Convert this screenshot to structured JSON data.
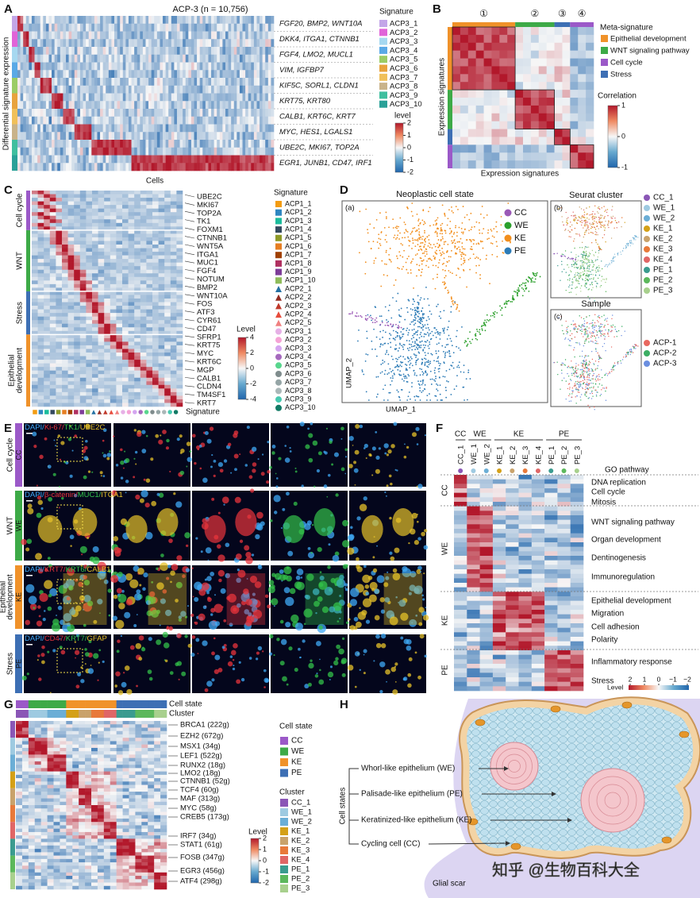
{
  "A": {
    "label": "A",
    "title": "ACP-3 (n = 10,756)",
    "y_label": "Differential signature expression",
    "x_label": "Cells",
    "genes": [
      "FGF20, BMP2, WNT10A",
      "DKK4, ITGA1, CTNNB1",
      "FGF4, LMO2, MUCL1",
      "VIM, IGFBP7",
      "KIF5C, SORL1, CLDN1",
      "KRT75, KRT80",
      "CALB1, KRT6C, KRT7",
      "MYC, HES1, LGALS1",
      "UBE2C, MKI67, TOP2A",
      "EGR1, JUNB1, CD47, IRF1"
    ],
    "legend_title": "Signature",
    "legend": [
      {
        "name": "ACP3_1",
        "color": "#c3a6e8"
      },
      {
        "name": "ACP3_2",
        "color": "#e064d8"
      },
      {
        "name": "ACP3_3",
        "color": "#a6d8f0"
      },
      {
        "name": "ACP3_4",
        "color": "#5aa9e6"
      },
      {
        "name": "ACP3_5",
        "color": "#9ccc65"
      },
      {
        "name": "ACP3_6",
        "color": "#e8a33d"
      },
      {
        "name": "ACP3_7",
        "color": "#f0c05a"
      },
      {
        "name": "ACP3_8",
        "color": "#c9b38a"
      },
      {
        "name": "ACP3_9",
        "color": "#3fbf9f"
      },
      {
        "name": "ACP3_10",
        "color": "#2aa198"
      }
    ],
    "colorbar_title": "level",
    "colorbar_ticks": [
      2,
      1,
      0,
      -1,
      -2
    ]
  },
  "B": {
    "label": "B",
    "column_groups": [
      "①",
      "②",
      "③",
      "④"
    ],
    "x_label": "Expression signatures",
    "y_label": "Expression signatures",
    "legend_title": "Meta-signature",
    "legend": [
      {
        "name": "Epithelial development",
        "color": "#f0922a"
      },
      {
        "name": "WNT signaling pathway",
        "color": "#3daa47"
      },
      {
        "name": "Cell cycle",
        "color": "#9b59c8"
      },
      {
        "name": "Stress",
        "color": "#3d6fb4"
      }
    ],
    "colorbar_title": "Correlation",
    "colorbar_ticks": [
      1,
      0,
      -1
    ]
  },
  "C": {
    "label": "C",
    "groups": [
      {
        "name": [
          "Cell cycle"
        ],
        "color": "#9b59c8"
      },
      {
        "name": [
          "WNT"
        ],
        "color": "#3daa47"
      },
      {
        "name": [
          "Stress"
        ],
        "color": "#3d6fb4"
      },
      {
        "name": [
          "Epithelial",
          "development"
        ],
        "color": "#f0922a"
      }
    ],
    "genes": [
      {
        "name": "UBE2C",
        "color": "#8e44ad"
      },
      {
        "name": "MKI67",
        "color": "#8e44ad"
      },
      {
        "name": "TOP2A",
        "color": "#111111"
      },
      {
        "name": "TK1",
        "color": "#8e44ad"
      },
      {
        "name": "FOXM1",
        "color": "#111111"
      },
      {
        "name": "CTNNB1",
        "color": "#27a844"
      },
      {
        "name": "WNT5A",
        "color": "#111111"
      },
      {
        "name": "ITGA1",
        "color": "#27a844"
      },
      {
        "name": "MUC1",
        "color": "#27a844"
      },
      {
        "name": "FGF4",
        "color": "#111111"
      },
      {
        "name": "NOTUM",
        "color": "#111111"
      },
      {
        "name": "BMP2",
        "color": "#111111"
      },
      {
        "name": "WNT10A",
        "color": "#111111"
      },
      {
        "name": "FOS",
        "color": "#111111"
      },
      {
        "name": "ATF3",
        "color": "#111111"
      },
      {
        "name": "CYR61",
        "color": "#111111"
      },
      {
        "name": "CD47",
        "color": "#2e7dd6"
      },
      {
        "name": "SFRP1",
        "color": "#111111"
      },
      {
        "name": "KRT75",
        "color": "#111111"
      },
      {
        "name": "MYC",
        "color": "#111111"
      },
      {
        "name": "KRT6C",
        "color": "#e69b1e"
      },
      {
        "name": "MGP",
        "color": "#111111"
      },
      {
        "name": "CALB1",
        "color": "#e69b1e"
      },
      {
        "name": "CLDN4",
        "color": "#111111"
      },
      {
        "name": "TM4SF1",
        "color": "#111111"
      },
      {
        "name": "KRT7",
        "color": "#e69b1e"
      }
    ],
    "legend_title": "Signature",
    "legend": [
      {
        "name": "ACP1_1",
        "color": "#f39c12",
        "shape": "square"
      },
      {
        "name": "ACP1_2",
        "color": "#2e86c1",
        "shape": "square"
      },
      {
        "name": "ACP1_3",
        "color": "#1abc9c",
        "shape": "square"
      },
      {
        "name": "ACP1_4",
        "color": "#34495e",
        "shape": "square"
      },
      {
        "name": "ACP1_5",
        "color": "#8e9a28",
        "shape": "square"
      },
      {
        "name": "ACP1_6",
        "color": "#e67e22",
        "shape": "square"
      },
      {
        "name": "ACP1_7",
        "color": "#a04000",
        "shape": "square"
      },
      {
        "name": "ACP1_8",
        "color": "#b03060",
        "shape": "square"
      },
      {
        "name": "ACP1_9",
        "color": "#7d3c98",
        "shape": "square"
      },
      {
        "name": "ACP1_10",
        "color": "#8fbc5a",
        "shape": "square"
      },
      {
        "name": "ACP2_1",
        "color": "#2471a3",
        "shape": "triangle"
      },
      {
        "name": "ACP2_2",
        "color": "#922b21",
        "shape": "triangle"
      },
      {
        "name": "ACP2_3",
        "color": "#c0392b",
        "shape": "triangle"
      },
      {
        "name": "ACP2_4",
        "color": "#e74c3c",
        "shape": "triangle"
      },
      {
        "name": "ACP2_5",
        "color": "#f08080",
        "shape": "triangle"
      },
      {
        "name": "ACP3_1",
        "color": "#e6b0e6",
        "shape": "circle"
      },
      {
        "name": "ACP3_2",
        "color": "#f5a3d6",
        "shape": "circle"
      },
      {
        "name": "ACP3_3",
        "color": "#d4a5f0",
        "shape": "circle"
      },
      {
        "name": "ACP3_4",
        "color": "#a569bd",
        "shape": "circle"
      },
      {
        "name": "ACP3_5",
        "color": "#58d68d",
        "shape": "circle"
      },
      {
        "name": "ACP3_6",
        "color": "#7f8c8d",
        "shape": "circle"
      },
      {
        "name": "ACP3_7",
        "color": "#95a5a6",
        "shape": "circle"
      },
      {
        "name": "ACP3_8",
        "color": "#aab7b8",
        "shape": "circle"
      },
      {
        "name": "ACP3_9",
        "color": "#48c9b0",
        "shape": "circle"
      },
      {
        "name": "ACP3_10",
        "color": "#117a65",
        "shape": "circle"
      }
    ],
    "colorbar_title": "Level",
    "colorbar_ticks": [
      4,
      2,
      0,
      -2,
      -4
    ]
  },
  "D": {
    "label": "D",
    "title": "Neoplastic cell state",
    "panel_a": "(a)",
    "y_label": "UMAP_2",
    "x_label": "UMAP_1",
    "states": [
      {
        "name": "CC",
        "color": "#9b59b6"
      },
      {
        "name": "WE",
        "color": "#2ca02c"
      },
      {
        "name": "KE",
        "color": "#f28e1c"
      },
      {
        "name": "PE",
        "color": "#2c7bb6"
      }
    ],
    "cluster_title": "Seurat cluster",
    "panel_b": "(b)",
    "clusters": [
      {
        "name": "CC_1",
        "color": "#8a56b6"
      },
      {
        "name": "WE_1",
        "color": "#9ecae1"
      },
      {
        "name": "WE_2",
        "color": "#6baed6"
      },
      {
        "name": "KE_1",
        "color": "#d4a017"
      },
      {
        "name": "KE_2",
        "color": "#c9a26b"
      },
      {
        "name": "KE_3",
        "color": "#e8793a"
      },
      {
        "name": "KE_4",
        "color": "#e06666"
      },
      {
        "name": "PE_1",
        "color": "#3a9b8f"
      },
      {
        "name": "PE_2",
        "color": "#5cb85c"
      },
      {
        "name": "PE_3",
        "color": "#a8d08d"
      }
    ],
    "sample_title": "Sample",
    "panel_c": "(c)",
    "samples": [
      {
        "name": "ACP-1",
        "color": "#e8685f"
      },
      {
        "name": "ACP-2",
        "color": "#3cae63"
      },
      {
        "name": "ACP-3",
        "color": "#6b8fe0"
      }
    ]
  },
  "E": {
    "label": "E",
    "rows": [
      {
        "group": [
          "Cell cycle"
        ],
        "state": "CC",
        "color": "#9b59c8",
        "stains": [
          {
            "text": "DAPI/",
            "color": "#3fa9f5"
          },
          {
            "text": "Ki-67/",
            "color": "#e8343c"
          },
          {
            "text": "TK1/",
            "color": "#33c24a"
          },
          {
            "text": "UBE2C",
            "color": "#e6c229"
          }
        ]
      },
      {
        "group": [
          "WNT"
        ],
        "state": "WE",
        "color": "#3daa47",
        "stains": [
          {
            "text": "DAPI/",
            "color": "#3fa9f5"
          },
          {
            "text": "β-catenin/",
            "color": "#e8343c"
          },
          {
            "text": "MUC1/",
            "color": "#33c24a"
          },
          {
            "text": "ITGA1",
            "color": "#e6c229"
          }
        ]
      },
      {
        "group": [
          "Epithelial",
          "development"
        ],
        "state": "KE",
        "color": "#f0922a",
        "stains": [
          {
            "text": "DAPI/",
            "color": "#3fa9f5"
          },
          {
            "text": "KRT7/",
            "color": "#e8343c"
          },
          {
            "text": "KRT6/",
            "color": "#33c24a"
          },
          {
            "text": "CALB1",
            "color": "#e6c229"
          }
        ]
      },
      {
        "group": [
          "Stress"
        ],
        "state": "PE",
        "color": "#3d6fb4",
        "stains": [
          {
            "text": "DAPI/",
            "color": "#3fa9f5"
          },
          {
            "text": "CD47/",
            "color": "#e8343c"
          },
          {
            "text": "KRT7/",
            "color": "#33c24a"
          },
          {
            "text": "GFAP",
            "color": "#e6c229"
          }
        ]
      }
    ]
  },
  "F": {
    "label": "F",
    "states": [
      {
        "name": "CC",
        "color": "#9b59c8"
      },
      {
        "name": "WE",
        "color": "#3daa47"
      },
      {
        "name": "KE",
        "color": "#f0922a"
      },
      {
        "name": "PE",
        "color": "#3d6fb4"
      }
    ],
    "clusters": [
      {
        "name": "CC_1",
        "color": "#8a56b6"
      },
      {
        "name": "WE_1",
        "color": "#9ecae1"
      },
      {
        "name": "WE_2",
        "color": "#6baed6"
      },
      {
        "name": "KE_1",
        "color": "#d4a017"
      },
      {
        "name": "KE_2",
        "color": "#c9a26b"
      },
      {
        "name": "KE_3",
        "color": "#e8793a"
      },
      {
        "name": "KE_4",
        "color": "#e06666"
      },
      {
        "name": "PE_1",
        "color": "#3a9b8f"
      },
      {
        "name": "PE_2",
        "color": "#5cb85c"
      },
      {
        "name": "PE_3",
        "color": "#a8d08d"
      }
    ],
    "go_title": "GO pathway",
    "row_groups": [
      "CC",
      "WE",
      "KE",
      "PE"
    ],
    "go_terms": [
      "DNA replication",
      "Cell cycle",
      "Mitosis",
      "WNT signaling pathway",
      "Organ development",
      "Dentinogenesis",
      "Immunoregulation",
      "Epithelial development",
      "Migration",
      "Cell adhesion",
      "Polarity",
      "Inflammatory response",
      "Stress"
    ],
    "colorbar_title": "Level",
    "colorbar_ticks": [
      2,
      1,
      0,
      {
        "value": -1,
        "label": "−1"
      },
      {
        "value": -2,
        "label": "−2"
      }
    ]
  },
  "G": {
    "label": "G",
    "bar_labels": [
      "Cell state",
      "Cluster"
    ],
    "genes": [
      "BRCA1 (222g)",
      "EZH2 (672g)",
      "MSX1 (34g)",
      "LEF1 (522g)",
      "RUNX2 (18g)",
      "LMO2 (18g)",
      "CTNNB1 (52g)",
      "TCF4 (60g)",
      "MAF (313g)",
      "MYC (58g)",
      "CREB5 (173g)",
      "IRF7 (34g)",
      "STAT1 (61g)",
      "FOSB (347g)",
      "EGR3 (456g)",
      "ATF4 (298g)"
    ],
    "state_title": "Cell state",
    "states": [
      {
        "name": "CC",
        "color": "#9b59c8"
      },
      {
        "name": "WE",
        "color": "#3daa47"
      },
      {
        "name": "KE",
        "color": "#f0922a"
      },
      {
        "name": "PE",
        "color": "#3d6fb4"
      }
    ],
    "cluster_title": "Cluster",
    "clusters": [
      {
        "name": "CC_1",
        "color": "#8a56b6"
      },
      {
        "name": "WE_1",
        "color": "#9ecae1"
      },
      {
        "name": "WE_2",
        "color": "#6baed6"
      },
      {
        "name": "KE_1",
        "color": "#d4a017"
      },
      {
        "name": "KE_2",
        "color": "#c9a26b"
      },
      {
        "name": "KE_3",
        "color": "#e8793a"
      },
      {
        "name": "KE_4",
        "color": "#e06666"
      },
      {
        "name": "PE_1",
        "color": "#3a9b8f"
      },
      {
        "name": "PE_2",
        "color": "#5cb85c"
      },
      {
        "name": "PE_3",
        "color": "#a8d08d"
      }
    ],
    "colorbar_title": "Level",
    "colorbar_ticks": [
      2,
      1,
      0,
      -1,
      -2
    ]
  },
  "H": {
    "label": "H",
    "bracket_label": "Cell states",
    "items": [
      "Whorl-like epithelium (WE)",
      "Palisade-like epithelium (PE)",
      "Keratinized-like epithelium (KE)",
      "Cycling cell (CC)"
    ],
    "region_label": "Glial scar"
  },
  "watermark": "知乎 @生物百科大全"
}
